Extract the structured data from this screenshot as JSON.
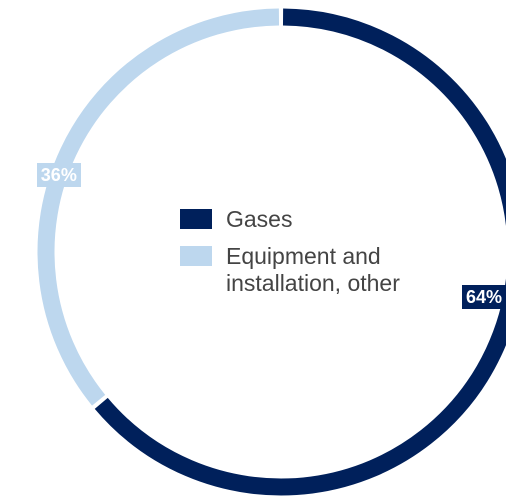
{
  "chart_data": {
    "type": "pie",
    "donut": true,
    "title": "",
    "categories": [
      "Gases",
      "Equipment and installation, other"
    ],
    "values": [
      64,
      36
    ],
    "labels": [
      "64%",
      "36%"
    ],
    "colors": [
      "#00205b",
      "#bdd7ee"
    ],
    "start_angle_deg": 0,
    "direction": "clockwise",
    "legend": {
      "placement": "center",
      "entries": [
        {
          "name": "Gases",
          "text": "Gases",
          "color": "#00205b"
        },
        {
          "name": "Equipment and installation, other",
          "text": "Equipment and\ninstallation, other",
          "color": "#bdd7ee"
        }
      ]
    }
  }
}
